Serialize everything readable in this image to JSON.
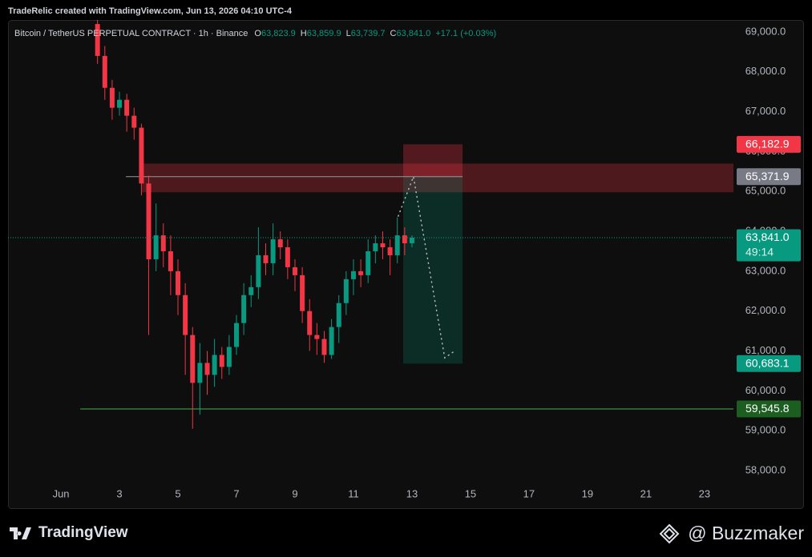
{
  "header": {
    "credit": "TradeRelic created with TradingView.com, Jun 13, 2026 04:10 UTC-4"
  },
  "footer": {
    "brand": "TradingView",
    "author": "@ Buzzmaker"
  },
  "chart_data": {
    "type": "candlestick",
    "legend": {
      "symbol": "Bitcoin / TetherUS PERPETUAL CONTRACT · 1h · Binance",
      "ohlc": [
        {
          "key": "O",
          "value": "63,823.9"
        },
        {
          "key": "H",
          "value": "63,859.9"
        },
        {
          "key": "L",
          "value": "63,739.7"
        },
        {
          "key": "C",
          "value": "63,841.0"
        }
      ],
      "change": "+17.1 (+0.03%)"
    },
    "up_color": "#089981",
    "down_color": "#f23645",
    "x": [
      2.25,
      2.5,
      2.75,
      3,
      3.25,
      3.5,
      3.75,
      4,
      4.25,
      4.5,
      4.75,
      5,
      5.25,
      5.5,
      5.75,
      6,
      6.25,
      6.5,
      6.75,
      7,
      7.25,
      7.5,
      7.75,
      8,
      8.25,
      8.5,
      8.75,
      9,
      9.25,
      9.5,
      9.75,
      10,
      10.25,
      10.5,
      10.75,
      11,
      11.25,
      11.5,
      11.75,
      12,
      12.25,
      12.5,
      12.75,
      13
    ],
    "open": [
      69200,
      68400,
      67600,
      67100,
      67300,
      66900,
      66600,
      65200,
      63300,
      63900,
      63500,
      63000,
      62400,
      61400,
      60200,
      60700,
      60400,
      60900,
      60600,
      61100,
      61700,
      62400,
      62600,
      63400,
      63200,
      63800,
      63600,
      63100,
      62900,
      62000,
      61400,
      61300,
      60900,
      61600,
      62200,
      62800,
      63000,
      62900,
      63500,
      63700,
      63600,
      63400,
      63900,
      63700
    ],
    "high": [
      69300,
      68650,
      67800,
      67500,
      67450,
      67100,
      66700,
      65400,
      64700,
      64200,
      63900,
      63300,
      62700,
      61600,
      61200,
      61000,
      61300,
      61100,
      61400,
      61900,
      62700,
      62900,
      64100,
      63700,
      64200,
      64000,
      63800,
      63300,
      63100,
      62300,
      61700,
      61500,
      61800,
      62400,
      63000,
      63300,
      63300,
      63800,
      63900,
      64000,
      63800,
      64350,
      64100,
      63900
    ],
    "low": [
      68200,
      67300,
      66800,
      66900,
      66500,
      66300,
      64900,
      61400,
      63000,
      63100,
      62400,
      61900,
      60400,
      59050,
      59400,
      59900,
      60100,
      60300,
      60400,
      60900,
      61400,
      62100,
      62300,
      62900,
      62900,
      63300,
      62800,
      62500,
      61700,
      61000,
      60900,
      60700,
      60800,
      61200,
      61900,
      62400,
      62600,
      62700,
      63200,
      63300,
      62900,
      63200,
      63400,
      63600
    ],
    "close": [
      68400,
      67600,
      67100,
      67300,
      66900,
      66600,
      65200,
      63300,
      63900,
      63500,
      63000,
      62400,
      61400,
      60200,
      60700,
      60400,
      60900,
      60600,
      61100,
      61700,
      62400,
      62600,
      63400,
      63200,
      63800,
      63600,
      63100,
      62900,
      62000,
      61400,
      61300,
      60900,
      61600,
      62200,
      62800,
      63000,
      62900,
      63500,
      63700,
      63600,
      63400,
      63900,
      63700,
      63841
    ],
    "xlim": [
      -0.81,
      23.99
    ],
    "xticks": [
      {
        "value": 1,
        "label": "Jun"
      },
      3,
      5,
      7,
      9,
      11,
      13,
      15,
      17,
      19,
      21,
      23
    ],
    "ylim": [
      57056,
      69301
    ],
    "yticks": [
      {
        "value": 58000,
        "label": "58,000.0"
      },
      {
        "value": 59000,
        "label": "59,000.0"
      },
      {
        "value": 60000,
        "label": "60,000.0"
      },
      {
        "value": 61000,
        "label": "61,000.0"
      },
      {
        "value": 62000,
        "label": "62,000.0"
      },
      {
        "value": 63000,
        "label": "63,000.0"
      },
      {
        "value": 64000,
        "label": "64,000.0"
      },
      {
        "value": 65000,
        "label": "65,000.0"
      },
      {
        "value": 66000,
        "label": "66,000.0"
      },
      {
        "value": 67000,
        "label": "67,000.0"
      },
      {
        "value": 68000,
        "label": "68,000.0"
      },
      {
        "value": 69000,
        "label": "69,000.0"
      }
    ],
    "grid": false,
    "zone": {
      "x": [
        3.77,
        23.99
      ],
      "y": [
        64980,
        65700
      ],
      "color": "#f23645"
    },
    "hline": {
      "value": 59545.8,
      "x_start": 1.66,
      "color": "#4caf50"
    },
    "position": {
      "x": [
        12.7,
        14.73
      ],
      "entry_start": 3.22,
      "stop": 66182.9,
      "entry": 65371.9,
      "target": 60683.1
    },
    "projection": {
      "x": [
        12.53,
        13.05,
        14.12,
        14.4
      ],
      "y": [
        64382,
        65371.9,
        60827,
        60968
      ]
    },
    "current_price": 63841.0,
    "price_labels": [
      {
        "value": 66182.9,
        "label": "66,182.9",
        "color": "#f23645"
      },
      {
        "value": 65371.9,
        "label": "65,371.9",
        "color": "#787b86"
      },
      {
        "value": 63841.0,
        "label": "63,841.0",
        "color": "#089981",
        "countdown": "49:14"
      },
      {
        "value": 60683.1,
        "label": "60,683.1",
        "color": "#089981"
      },
      {
        "value": 59545.8,
        "label": "59,545.8",
        "color": "#1b5e20"
      }
    ]
  }
}
